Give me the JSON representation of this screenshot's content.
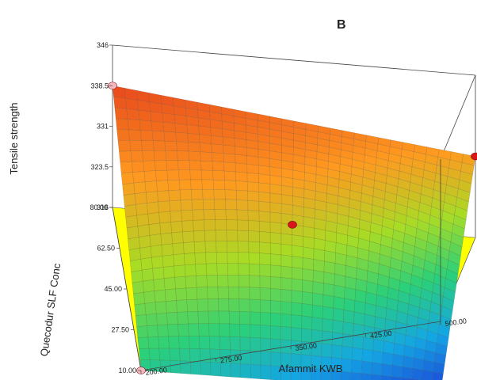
{
  "chart_data": {
    "type": "surface",
    "panel_label": "B",
    "xlabel": "Afammit KWB",
    "ylabel": "Quecodur SLF Conc",
    "zlabel": "Tensile strength",
    "x_ticks": [
      "200.00",
      "275.00",
      "350.00",
      "425.00",
      "500.00"
    ],
    "y_ticks": [
      "10.00",
      "27.50",
      "45.00",
      "62.50",
      "80.00"
    ],
    "z_ticks": [
      "316",
      "323.5",
      "331",
      "338.5",
      "346"
    ],
    "xlim": [
      200,
      500
    ],
    "ylim": [
      10,
      80
    ],
    "zlim": [
      316,
      346
    ],
    "surface_corners": {
      "x200_y80": 338.5,
      "x500_y80": 331,
      "x500_y10": 303,
      "x200_y10": 316,
      "center": 327
    },
    "design_points": [
      {
        "x": 200,
        "y": 80,
        "z": 338.5,
        "color": "#f4b8c0"
      },
      {
        "x": 500,
        "y": 80,
        "z": 331,
        "color": "#d81818"
      },
      {
        "x": 350,
        "y": 45,
        "z": 327,
        "color": "#d81818"
      },
      {
        "x": 500,
        "y": 10,
        "z": 303,
        "color": "#d81818"
      },
      {
        "x": 200,
        "y": 10,
        "z": 316,
        "color": "#f4b8c0"
      }
    ],
    "floor_color": "#ffff00",
    "contour_color": "#63c9a8",
    "colormap": [
      "#1c3fd8",
      "#13a6e4",
      "#2bd07a",
      "#a8dc25",
      "#ff9a1f",
      "#e8481c"
    ]
  }
}
